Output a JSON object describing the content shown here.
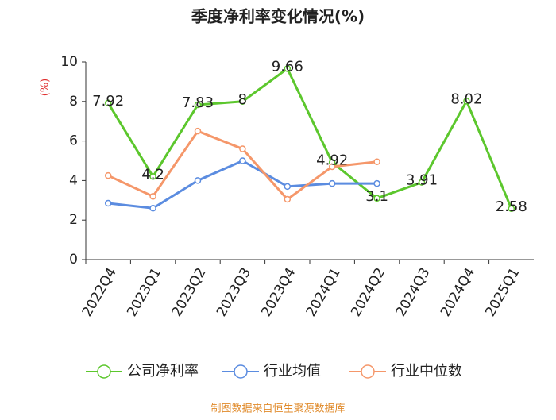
{
  "chart_data": {
    "type": "line",
    "title": "季度净利率变化情况(%)",
    "y_label": "(%)",
    "categories": [
      "2022Q4",
      "2023Q1",
      "2023Q2",
      "2023Q3",
      "2023Q4",
      "2024Q1",
      "2024Q2",
      "2024Q3",
      "2024Q4",
      "2025Q1"
    ],
    "series": [
      {
        "name": "公司净利率",
        "color": "#5cc72d",
        "values": [
          7.92,
          4.2,
          7.83,
          8,
          9.66,
          4.92,
          3.1,
          3.91,
          8.02,
          2.58
        ],
        "labels": true
      },
      {
        "name": "行业均值",
        "color": "#5b8ce0",
        "values": [
          2.85,
          2.6,
          4.0,
          5.0,
          3.7,
          3.85,
          3.85,
          null,
          null,
          null
        ]
      },
      {
        "name": "行业中位数",
        "color": "#f5976a",
        "values": [
          4.25,
          3.2,
          6.5,
          5.6,
          3.05,
          4.7,
          4.95,
          null,
          null,
          null
        ]
      }
    ],
    "ylim": [
      0,
      10
    ],
    "yticks": [
      0,
      2,
      4,
      6,
      8,
      10
    ],
    "grid": false,
    "source": "制图数据来自恒生聚源数据库"
  }
}
